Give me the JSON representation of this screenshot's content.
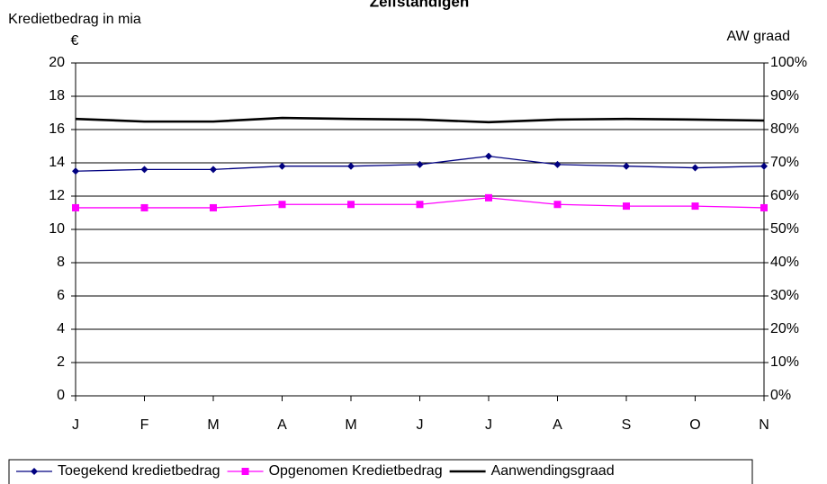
{
  "chart_data": {
    "type": "line",
    "title": "Zelfstandigen",
    "y_label": "Kredietbedrag in mia €",
    "y2_label": "AW graad",
    "categories": [
      "J",
      "F",
      "M",
      "A",
      "M",
      "J",
      "J",
      "A",
      "S",
      "O",
      "N"
    ],
    "series": [
      {
        "name": "Toegekend kredietbedrag",
        "color": "#000080",
        "marker": "diamond",
        "width": 1.3,
        "values": [
          13.5,
          13.6,
          13.6,
          13.8,
          13.8,
          13.9,
          14.4,
          13.9,
          13.8,
          13.7,
          13.8
        ]
      },
      {
        "name": "Opgenomen Kredietbedrag",
        "color": "#ff00ff",
        "marker": "square",
        "width": 1.3,
        "values": [
          11.3,
          11.3,
          11.3,
          11.5,
          11.5,
          11.5,
          11.9,
          11.5,
          11.4,
          11.4,
          11.3
        ]
      },
      {
        "name": "Aanwendingsgraad",
        "color": "#000000",
        "marker": null,
        "width": 2.6,
        "axis": "y2",
        "values": [
          83.2,
          82.4,
          82.4,
          83.5,
          83.2,
          83.0,
          82.2,
          83.0,
          83.2,
          83.0,
          82.7
        ]
      }
    ],
    "ylim": [
      0,
      20
    ],
    "yticks": [
      0,
      2,
      4,
      6,
      8,
      10,
      12,
      14,
      16,
      18,
      20
    ],
    "y2lim": [
      0,
      100
    ],
    "y2ticks": [
      {
        "value": 0,
        "label": "0%"
      },
      {
        "value": 10,
        "label": "10%"
      },
      {
        "value": 20,
        "label": "20%"
      },
      {
        "value": 30,
        "label": "30%"
      },
      {
        "value": 40,
        "label": "40%"
      },
      {
        "value": 50,
        "label": "50%"
      },
      {
        "value": 60,
        "label": "60%"
      },
      {
        "value": 70,
        "label": "70%"
      },
      {
        "value": 80,
        "label": "80%"
      },
      {
        "value": 90,
        "label": "90%"
      },
      {
        "value": 100,
        "label": "100%"
      }
    ],
    "grid": true,
    "legend": "bottom"
  }
}
